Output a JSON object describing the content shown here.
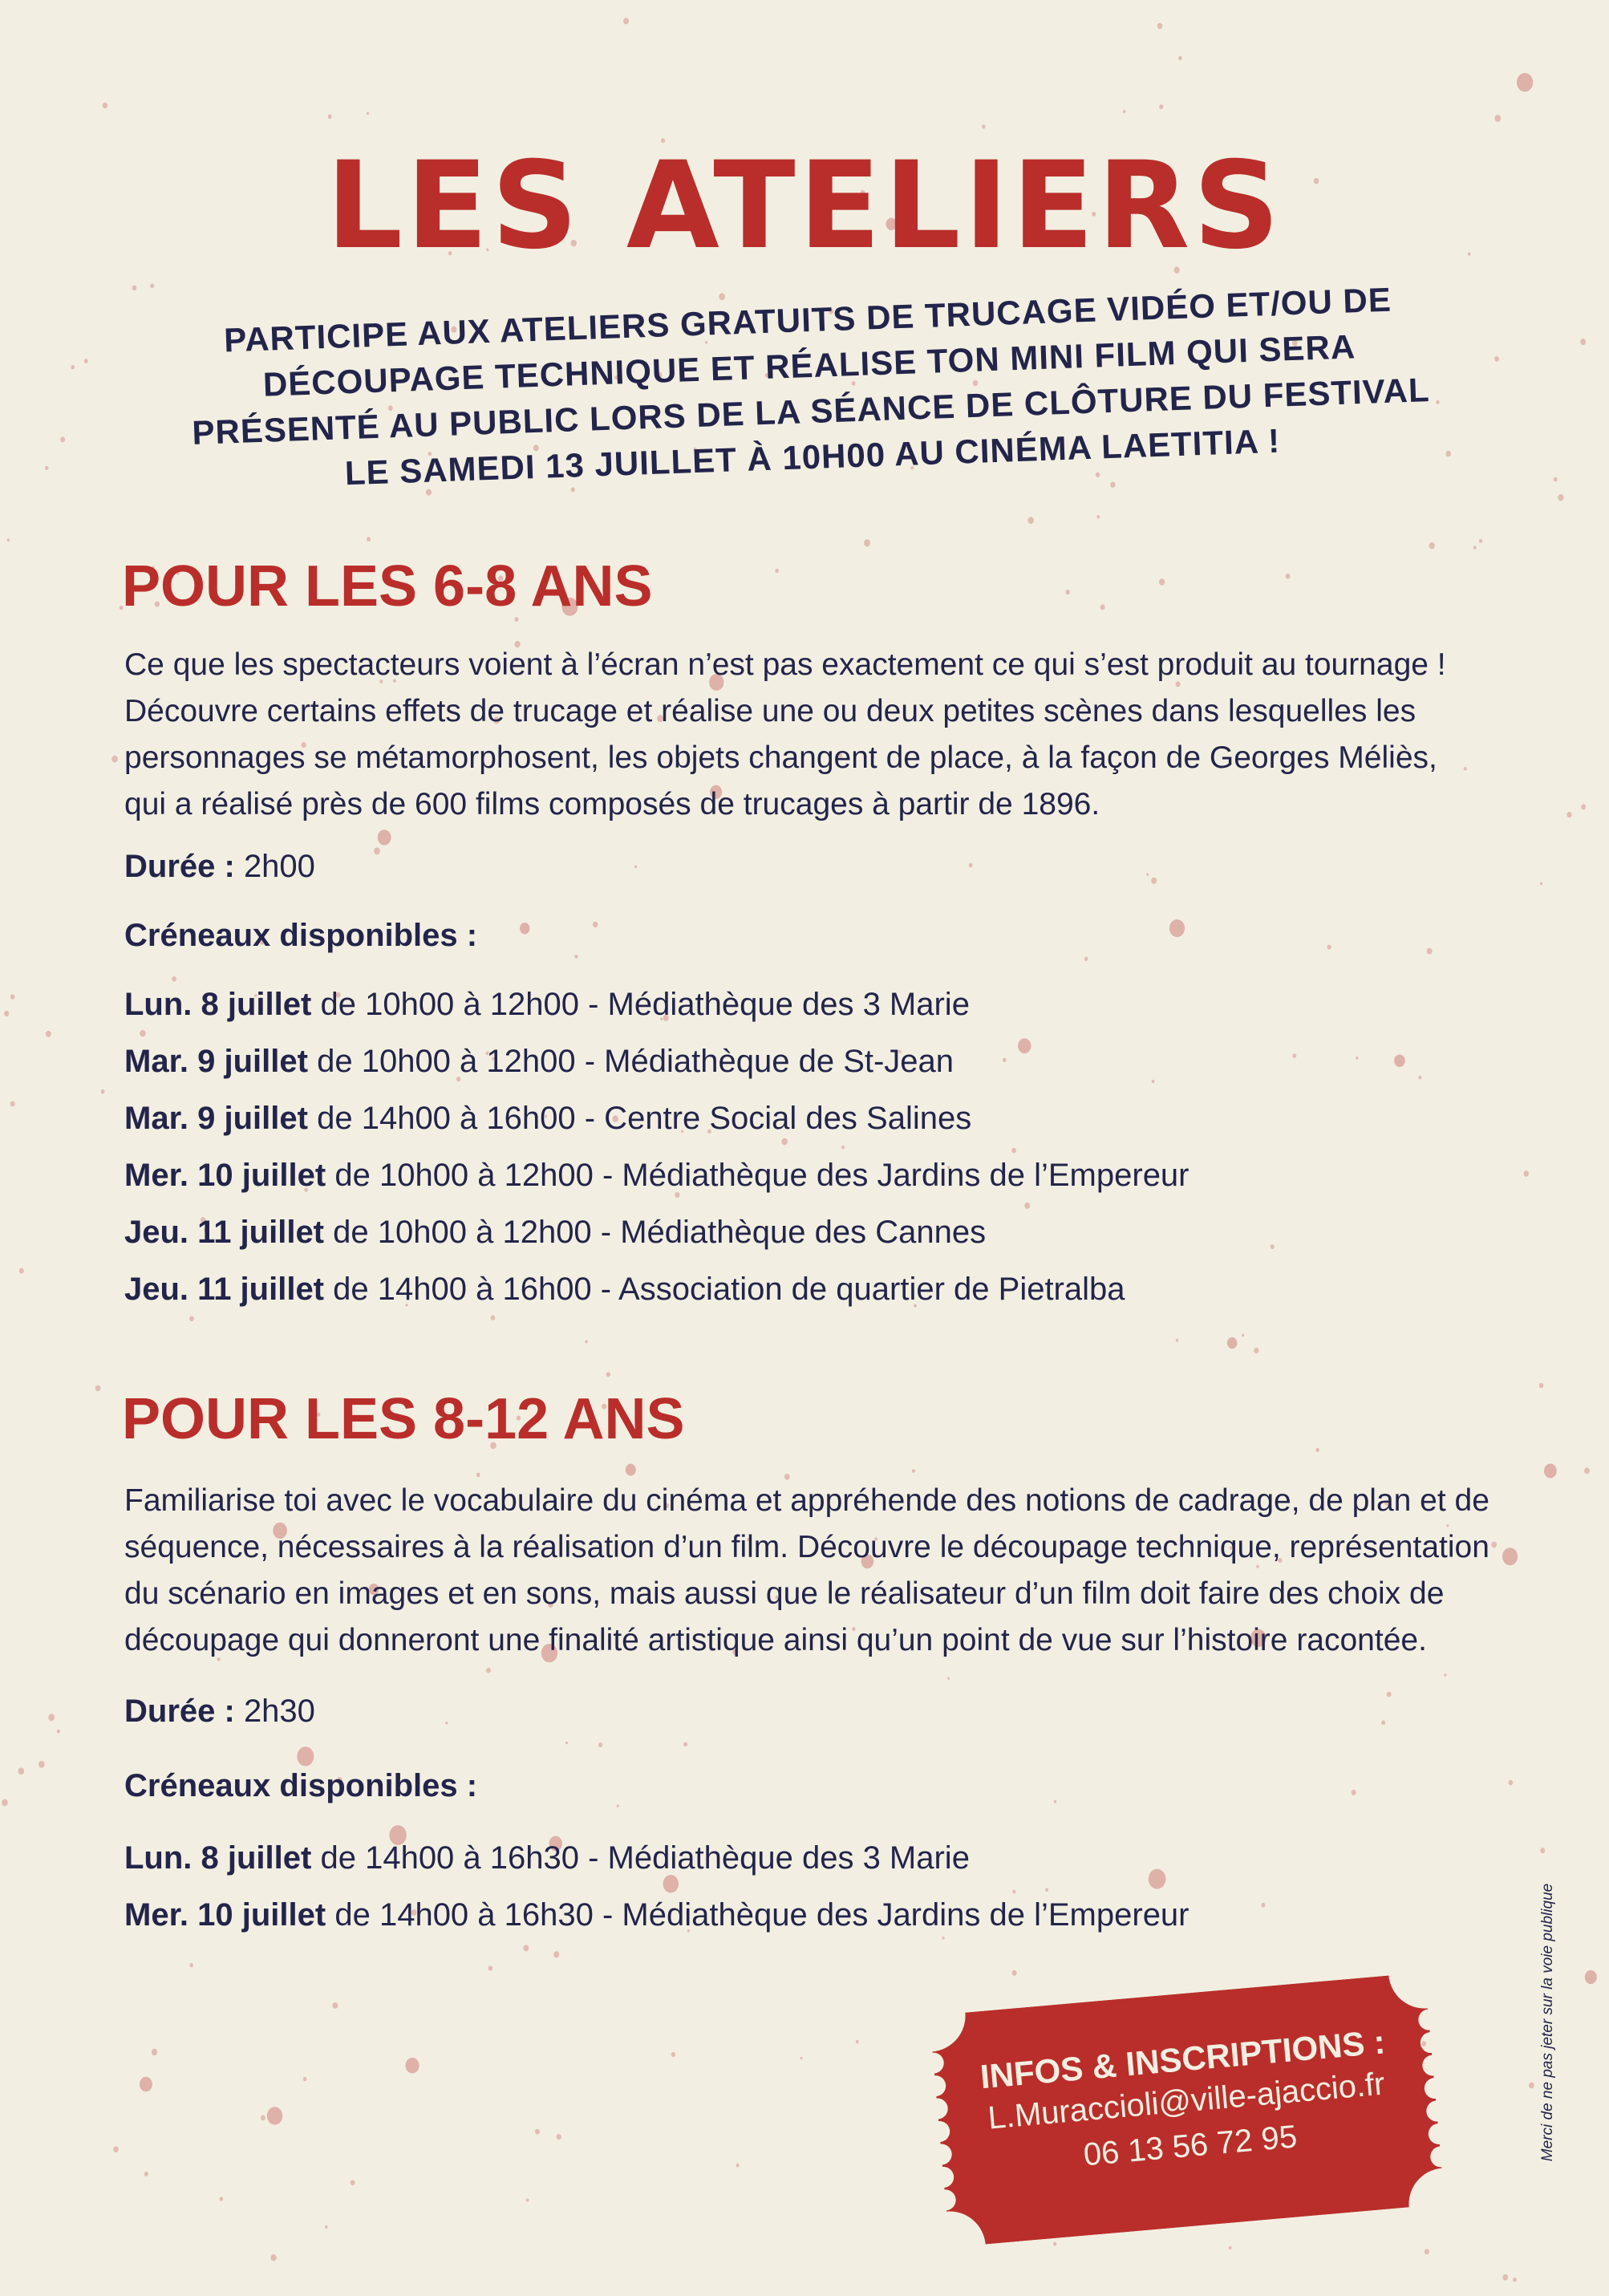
{
  "title": "LES ATELIERS",
  "intro": [
    "PARTICIPE AUX ATELIERS GRATUITS DE TRUCAGE VIDÉO ET/OU DE",
    "DÉCOUPAGE TECHNIQUE ET RÉALISE TON MINI FILM QUI SERA",
    "PRÉSENTÉ AU PUBLIC LORS DE LA SÉANCE DE CLÔTURE DU FESTIVAL",
    "LE SAMEDI 13 JUILLET À 10H00 AU CINÉMA LAETITIA !"
  ],
  "colors": {
    "red": "#b92e2a",
    "navy": "#23244a",
    "background": "#f2efe2",
    "dots": "#dba69f"
  },
  "section1": {
    "heading": "POUR LES 6-8 ANS",
    "paragraph": [
      "Ce que les spectacteurs voient à l’écran n’est pas exactement ce qui s’est produit au tournage !",
      "Découvre certains effets de trucage et réalise une ou deux petites scènes dans lesquelles les",
      "personnages se métamorphosent, les objets changent de place, à la façon de Georges Méliès,",
      "qui a réalisé près de 600 films composés de trucages à partir de 1896."
    ],
    "duration_label": "Durée :",
    "duration": "2h00",
    "slots_label": "Créneaux disponibles :",
    "slots": [
      {
        "day": "Lun. 8 juillet",
        "detail": "de 10h00 à 12h00 - Médiathèque des 3 Marie"
      },
      {
        "day": "Mar. 9 juillet",
        "detail": "de 10h00 à 12h00 - Médiathèque de St-Jean"
      },
      {
        "day": "Mar. 9 juillet",
        "detail": "de 14h00 à 16h00 - Centre Social des Salines"
      },
      {
        "day": "Mer. 10 juillet",
        "detail": "de 10h00 à 12h00 - Médiathèque des Jardins de l’Empereur"
      },
      {
        "day": "Jeu. 11 juillet",
        "detail": "de 10h00 à 12h00 - Médiathèque des Cannes"
      },
      {
        "day": "Jeu. 11 juillet",
        "detail": "de 14h00 à 16h00 - Association de quartier de Pietralba"
      }
    ]
  },
  "section2": {
    "heading": "POUR LES 8-12 ANS",
    "paragraph": [
      "Familiarise toi avec le vocabulaire du cinéma et appréhende des notions de cadrage, de plan et de",
      "séquence, nécessaires à la réalisation d’un film. Découvre le découpage technique, représentation",
      "du scénario en images et en sons, mais aussi que le réalisateur d’un film doit faire des choix de",
      "découpage qui donneront une finalité artistique ainsi qu’un point de vue sur l’histoire racontée."
    ],
    "duration_label": "Durée :",
    "duration": "2h30",
    "slots_label": "Créneaux disponibles :",
    "slots": [
      {
        "day": "Lun. 8 juillet",
        "detail": "de 14h00 à 16h30 - Médiathèque des 3 Marie"
      },
      {
        "day": "Mer. 10 juillet",
        "detail": "de 14h00 à 16h30 - Médiathèque des Jardins de l’Empereur"
      }
    ]
  },
  "ticket": {
    "heading": "INFOS & INSCRIPTIONS :",
    "email": "L.Muraccioli@ville-ajaccio.fr",
    "phone": "06 13 56 72 95"
  },
  "side_note": "Merci de ne pas jeter sur la voie publique"
}
